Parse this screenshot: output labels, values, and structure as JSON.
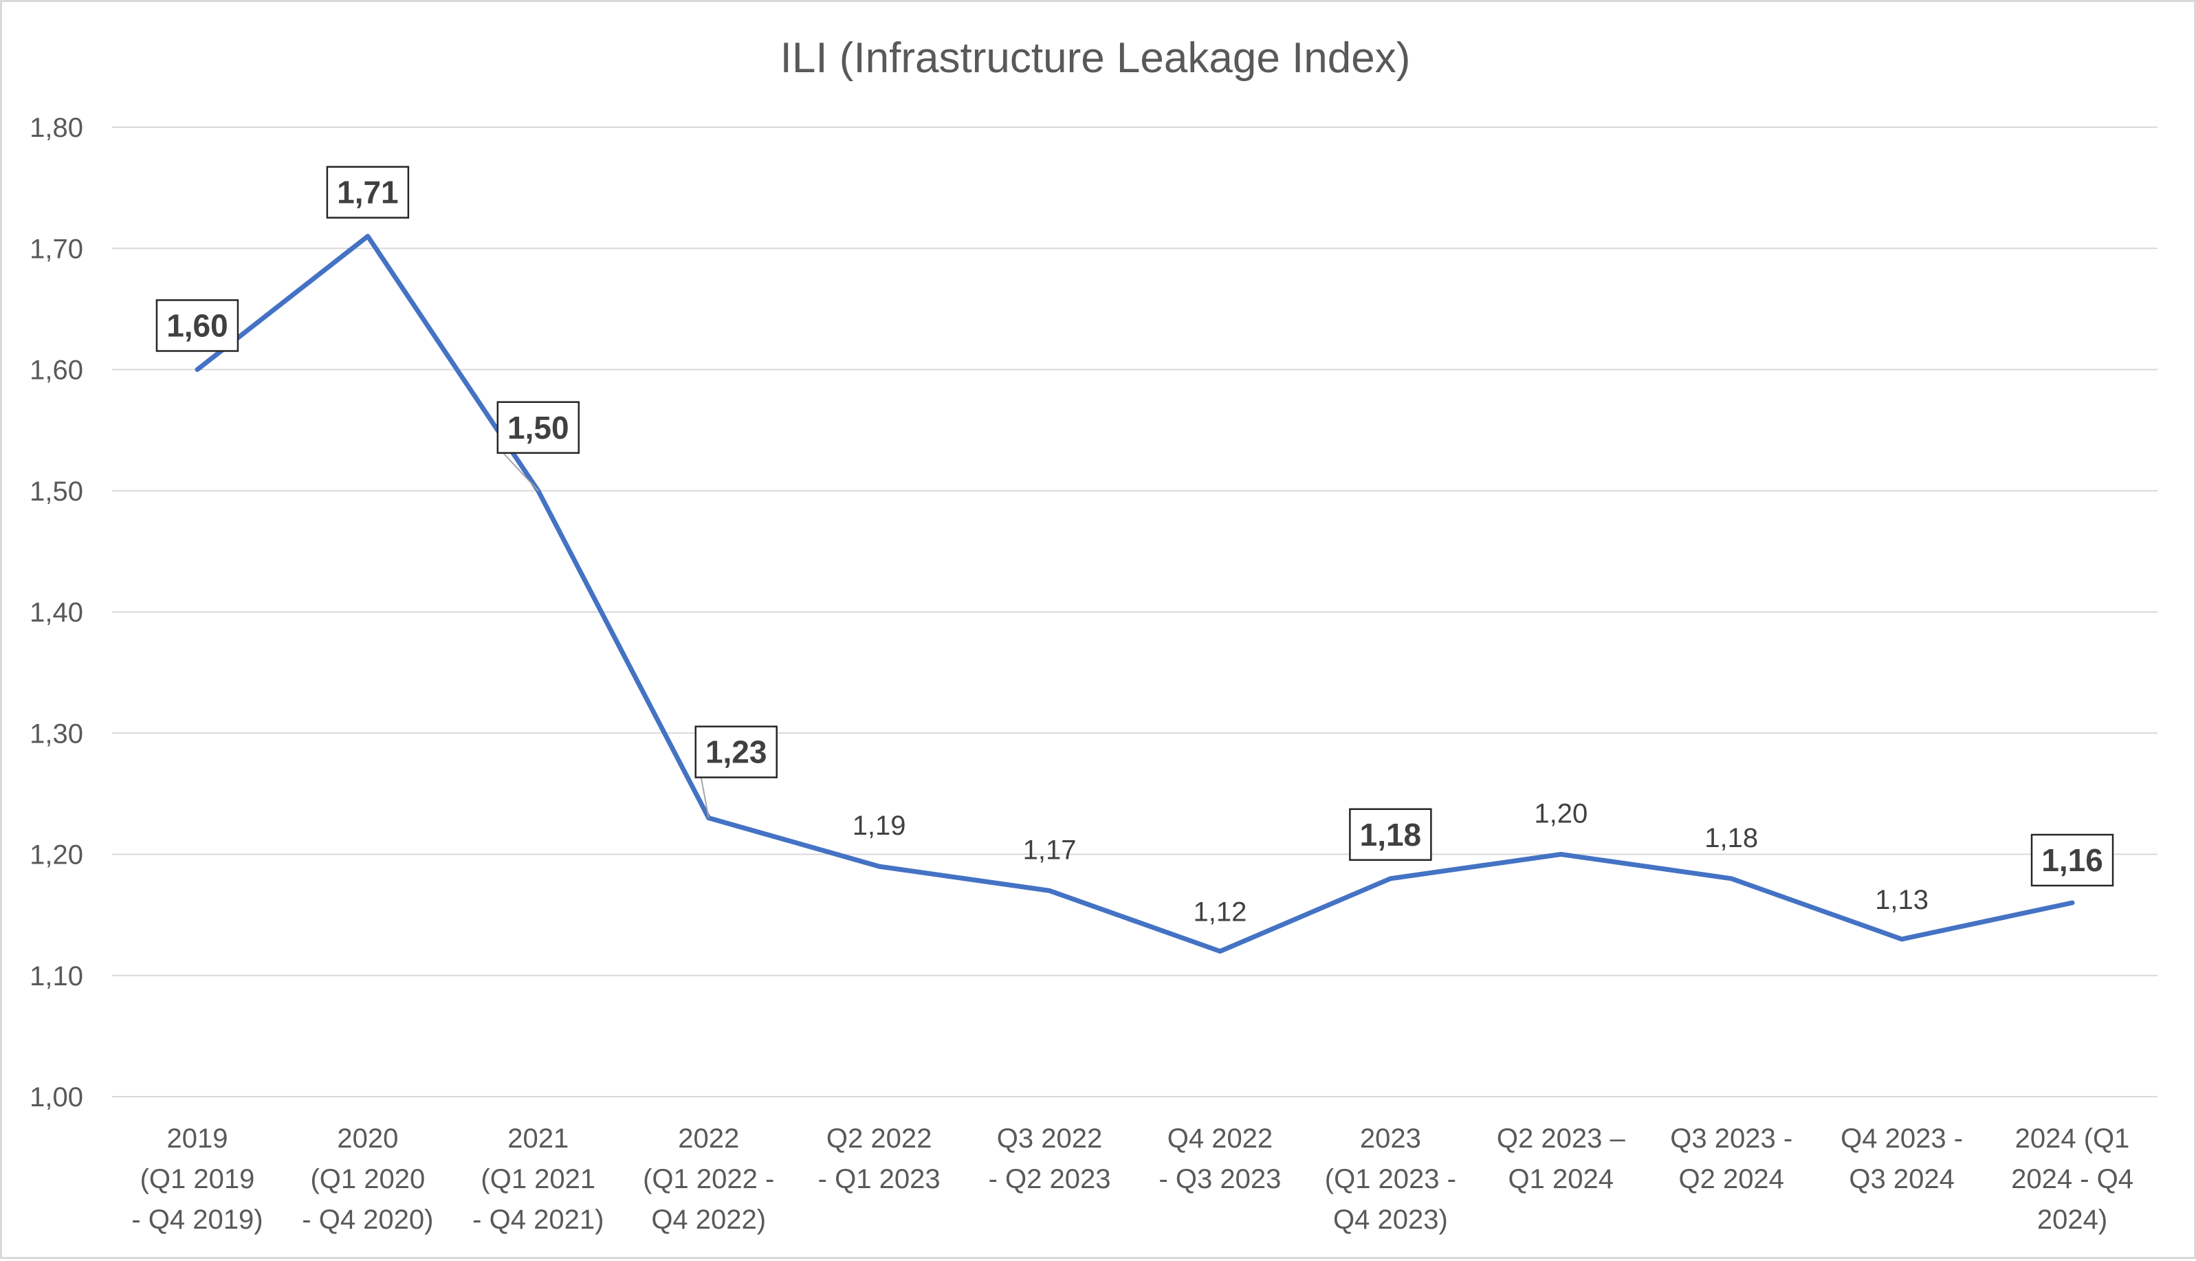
{
  "chart_data": {
    "type": "line",
    "title": "ILI (Infrastructure Leakage Index)",
    "xlabel": "",
    "ylabel": "",
    "ylim": [
      1.0,
      1.8
    ],
    "y_ticks": [
      "1,00",
      "1,10",
      "1,20",
      "1,30",
      "1,40",
      "1,50",
      "1,60",
      "1,70",
      "1,80"
    ],
    "grid": true,
    "legend": "none",
    "line_color": "#4472c4",
    "categories": [
      "2019 (Q1 2019 - Q4 2019)",
      "2020 (Q1 2020 - Q4 2020)",
      "2021 (Q1 2021 - Q4 2021)",
      "2022 (Q1 2022 - Q4 2022)",
      "Q2 2022 - Q1 2023",
      "Q3 2022 - Q2 2023",
      "Q4 2022 - Q3 2023",
      "2023 (Q1 2023 - Q4 2023)",
      "Q2 2023 – Q1 2024",
      "Q3 2023 - Q2 2024",
      "Q4 2023 - Q3 2024",
      "2024 (Q1 2024 - Q4 2024)"
    ],
    "category_lines": [
      [
        "2019",
        "(Q1 2019",
        "- Q4 2019)"
      ],
      [
        "2020",
        "(Q1 2020",
        "- Q4 2020)"
      ],
      [
        "2021",
        "(Q1 2021",
        "- Q4 2021)"
      ],
      [
        "2022",
        "(Q1 2022 -",
        "Q4 2022)"
      ],
      [
        "Q2 2022",
        "- Q1 2023"
      ],
      [
        "Q3 2022",
        "- Q2 2023"
      ],
      [
        "Q4 2022",
        "- Q3 2023"
      ],
      [
        "2023",
        "(Q1 2023 -",
        "Q4 2023)"
      ],
      [
        "Q2 2023 –",
        "Q1 2024"
      ],
      [
        "Q3 2023 -",
        "Q2 2024"
      ],
      [
        "Q4 2023 -",
        "Q3 2024"
      ],
      [
        "2024 (Q1",
        "2024 - Q4",
        "2024)"
      ]
    ],
    "values": [
      1.6,
      1.71,
      1.5,
      1.23,
      1.19,
      1.17,
      1.12,
      1.18,
      1.2,
      1.18,
      1.13,
      1.16
    ],
    "data_labels": [
      "1,60",
      "1,71",
      "1,50",
      "1,23",
      "1,19",
      "1,17",
      "1,12",
      "1,18",
      "1,20",
      "1,18",
      "1,13",
      "1,16"
    ],
    "highlighted_labels": [
      true,
      true,
      true,
      true,
      false,
      false,
      false,
      true,
      false,
      false,
      false,
      true
    ]
  }
}
